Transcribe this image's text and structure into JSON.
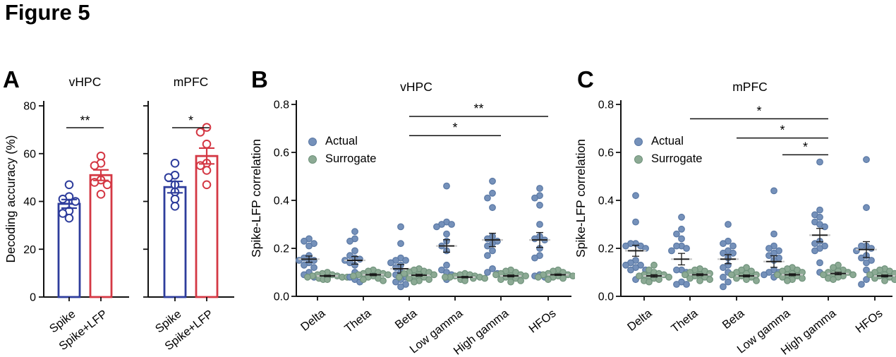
{
  "figure_title": "Figure 5",
  "colors": {
    "bar_blue": "#2e3d9c",
    "bar_red": "#d43844",
    "dot_blue_fill": "#7591ba",
    "dot_blue_stroke": "#5a78a4",
    "dot_green_fill": "#8caa94",
    "dot_green_stroke": "#6f927b",
    "axis": "#111111",
    "mean_line": "#1a1a1a",
    "mean_line_gray": "#c8c8c8"
  },
  "chart_data": [
    {
      "panel_label": "A",
      "type": "bar",
      "ylabel": "Decoding accuracy (%)",
      "ylim": [
        0,
        80
      ],
      "yticks": [
        0,
        20,
        40,
        60,
        80
      ],
      "subpanels": [
        {
          "title": "vHPC",
          "significance": "**",
          "bars": [
            {
              "label": "Spike",
              "color_key": "bar_blue",
              "mean": 39,
              "sem": 1.8,
              "points": [
                47,
                42,
                41,
                40,
                36,
                35,
                33
              ]
            },
            {
              "label": "Spike+LFP",
              "color_key": "bar_red",
              "mean": 51,
              "sem": 2.2,
              "points": [
                59,
                56,
                55,
                49,
                48,
                47,
                43
              ]
            }
          ]
        },
        {
          "title": "mPFC",
          "significance": "*",
          "bars": [
            {
              "label": "Spike",
              "color_key": "bar_blue",
              "mean": 46,
              "sem": 2.4,
              "points": [
                56,
                51,
                50,
                47,
                44,
                41,
                38
              ]
            },
            {
              "label": "Spike+LFP",
              "color_key": "bar_red",
              "mean": 59,
              "sem": 3.3,
              "points": [
                71,
                69,
                64,
                56,
                55,
                53,
                47
              ]
            }
          ]
        }
      ]
    },
    {
      "panel_label": "B",
      "type": "scatter-swarm",
      "title": "vHPC",
      "ylabel": "Spike-LFP correlation",
      "ylim": [
        0,
        0.8
      ],
      "yticks": [
        0,
        0.2,
        0.4,
        0.6,
        0.8
      ],
      "legend": [
        {
          "label": "Actual",
          "color_key": "dot_blue"
        },
        {
          "label": "Surrogate",
          "color_key": "dot_green"
        }
      ],
      "categories": [
        "Delta",
        "Theta",
        "Beta",
        "Low gamma",
        "High gamma",
        "HFOs"
      ],
      "significance": [
        {
          "from": "Beta",
          "to": "HFOs",
          "label": "**",
          "height": 0.75
        },
        {
          "from": "Beta",
          "to": "High gamma",
          "label": "*",
          "height": 0.67
        }
      ],
      "groups": [
        {
          "category": "Delta",
          "actual": {
            "mean": 0.155,
            "sem": 0.013,
            "points": [
              0.24,
              0.23,
              0.22,
              0.21,
              0.17,
              0.16,
              0.15,
              0.15,
              0.14,
              0.13,
              0.12,
              0.1,
              0.09,
              0.08
            ]
          },
          "surrogate": {
            "mean": 0.085,
            "sem": 0.003,
            "points": [
              0.1,
              0.095,
              0.09,
              0.09,
              0.085,
              0.085,
              0.08,
              0.08,
              0.08,
              0.075,
              0.075,
              0.07,
              0.07
            ]
          }
        },
        {
          "category": "Theta",
          "actual": {
            "mean": 0.15,
            "sem": 0.016,
            "points": [
              0.27,
              0.24,
              0.23,
              0.19,
              0.17,
              0.16,
              0.155,
              0.15,
              0.14,
              0.13,
              0.1,
              0.08,
              0.07,
              0.06
            ]
          },
          "surrogate": {
            "mean": 0.09,
            "sem": 0.004,
            "points": [
              0.11,
              0.105,
              0.1,
              0.095,
              0.095,
              0.09,
              0.09,
              0.085,
              0.085,
              0.08,
              0.075,
              0.07,
              0.065
            ]
          }
        },
        {
          "category": "Beta",
          "actual": {
            "mean": 0.115,
            "sem": 0.018,
            "points": [
              0.29,
              0.22,
              0.16,
              0.15,
              0.15,
              0.14,
              0.13,
              0.12,
              0.1,
              0.09,
              0.08,
              0.07,
              0.06,
              0.05,
              0.04
            ]
          },
          "surrogate": {
            "mean": 0.088,
            "sem": 0.004,
            "points": [
              0.115,
              0.11,
              0.105,
              0.1,
              0.1,
              0.095,
              0.09,
              0.09,
              0.085,
              0.08,
              0.08,
              0.075,
              0.07,
              0.065,
              0.06
            ]
          }
        },
        {
          "category": "Low gamma",
          "actual": {
            "mean": 0.21,
            "sem": 0.026,
            "points": [
              0.46,
              0.31,
              0.3,
              0.3,
              0.29,
              0.26,
              0.23,
              0.21,
              0.19,
              0.13,
              0.11,
              0.1,
              0.09,
              0.07
            ]
          },
          "surrogate": {
            "mean": 0.08,
            "sem": 0.003,
            "points": [
              0.095,
              0.09,
              0.09,
              0.085,
              0.085,
              0.08,
              0.08,
              0.08,
              0.075,
              0.075,
              0.07,
              0.07,
              0.065
            ]
          }
        },
        {
          "category": "High gamma",
          "actual": {
            "mean": 0.235,
            "sem": 0.028,
            "points": [
              0.48,
              0.43,
              0.41,
              0.37,
              0.25,
              0.24,
              0.23,
              0.22,
              0.21,
              0.19,
              0.17,
              0.115,
              0.1,
              0.095
            ]
          },
          "surrogate": {
            "mean": 0.085,
            "sem": 0.004,
            "points": [
              0.11,
              0.105,
              0.1,
              0.095,
              0.09,
              0.09,
              0.085,
              0.085,
              0.08,
              0.075,
              0.07,
              0.065,
              0.06
            ]
          }
        },
        {
          "category": "HFOs",
          "actual": {
            "mean": 0.235,
            "sem": 0.031,
            "points": [
              0.45,
              0.42,
              0.41,
              0.38,
              0.3,
              0.25,
              0.24,
              0.235,
              0.2,
              0.17,
              0.16,
              0.09,
              0.085,
              0.08
            ]
          },
          "surrogate": {
            "mean": 0.09,
            "sem": 0.003,
            "points": [
              0.11,
              0.105,
              0.1,
              0.095,
              0.09,
              0.09,
              0.085,
              0.085,
              0.08,
              0.08,
              0.075,
              0.07
            ]
          }
        }
      ]
    },
    {
      "panel_label": "C",
      "type": "scatter-swarm",
      "title": "mPFC",
      "ylabel": "Spike-LFP correlation",
      "ylim": [
        0,
        0.8
      ],
      "yticks": [
        0,
        0.2,
        0.4,
        0.6,
        0.8
      ],
      "legend": [
        {
          "label": "Actual",
          "color_key": "dot_blue"
        },
        {
          "label": "Surrogate",
          "color_key": "dot_green"
        }
      ],
      "categories": [
        "Delta",
        "Theta",
        "Beta",
        "Low gamma",
        "High gamma",
        "HFOs"
      ],
      "significance": [
        {
          "from": "Theta",
          "to": "High gamma",
          "label": "*",
          "height": 0.74
        },
        {
          "from": "Beta",
          "to": "High gamma",
          "label": "*",
          "height": 0.66
        },
        {
          "from": "Low gamma",
          "to": "High gamma",
          "label": "*",
          "height": 0.59
        }
      ],
      "groups": [
        {
          "category": "Delta",
          "actual": {
            "mean": 0.19,
            "sem": 0.023,
            "points": [
              0.42,
              0.31,
              0.22,
              0.22,
              0.21,
              0.21,
              0.2,
              0.15,
              0.14,
              0.13,
              0.13,
              0.12,
              0.11,
              0.11,
              0.07
            ]
          },
          "surrogate": {
            "mean": 0.085,
            "sem": 0.005,
            "points": [
              0.13,
              0.11,
              0.1,
              0.095,
              0.09,
              0.09,
              0.085,
              0.085,
              0.08,
              0.075,
              0.07,
              0.065,
              0.06
            ]
          }
        },
        {
          "category": "Theta",
          "actual": {
            "mean": 0.155,
            "sem": 0.024,
            "points": [
              0.33,
              0.28,
              0.26,
              0.24,
              0.21,
              0.21,
              0.2,
              0.19,
              0.11,
              0.11,
              0.1,
              0.06,
              0.05,
              0.05
            ]
          },
          "surrogate": {
            "mean": 0.09,
            "sem": 0.004,
            "points": [
              0.115,
              0.11,
              0.105,
              0.1,
              0.095,
              0.09,
              0.09,
              0.085,
              0.08,
              0.075,
              0.07,
              0.065
            ]
          }
        },
        {
          "category": "Beta",
          "actual": {
            "mean": 0.155,
            "sem": 0.019,
            "points": [
              0.3,
              0.23,
              0.22,
              0.21,
              0.19,
              0.18,
              0.18,
              0.16,
              0.13,
              0.12,
              0.1,
              0.08,
              0.06,
              0.04
            ]
          },
          "surrogate": {
            "mean": 0.085,
            "sem": 0.004,
            "points": [
              0.12,
              0.11,
              0.105,
              0.1,
              0.095,
              0.09,
              0.09,
              0.085,
              0.08,
              0.075,
              0.07,
              0.065
            ]
          }
        },
        {
          "category": "Low gamma",
          "actual": {
            "mean": 0.145,
            "sem": 0.024,
            "points": [
              0.44,
              0.26,
              0.21,
              0.2,
              0.19,
              0.18,
              0.17,
              0.16,
              0.15,
              0.11,
              0.1,
              0.1,
              0.09,
              0.08
            ]
          },
          "surrogate": {
            "mean": 0.09,
            "sem": 0.004,
            "points": [
              0.12,
              0.115,
              0.11,
              0.105,
              0.1,
              0.095,
              0.09,
              0.09,
              0.085,
              0.08,
              0.075,
              0.07,
              0.065
            ]
          }
        },
        {
          "category": "High gamma",
          "actual": {
            "mean": 0.255,
            "sem": 0.028,
            "points": [
              0.56,
              0.36,
              0.34,
              0.33,
              0.31,
              0.3,
              0.29,
              0.23,
              0.22,
              0.21,
              0.2,
              0.19,
              0.14,
              0.1
            ]
          },
          "surrogate": {
            "mean": 0.095,
            "sem": 0.005,
            "points": [
              0.13,
              0.12,
              0.11,
              0.105,
              0.1,
              0.1,
              0.095,
              0.09,
              0.09,
              0.085,
              0.08,
              0.075,
              0.07
            ]
          }
        },
        {
          "category": "HFOs",
          "actual": {
            "mean": 0.195,
            "sem": 0.033,
            "points": [
              0.57,
              0.37,
              0.21,
              0.21,
              0.2,
              0.19,
              0.17,
              0.16,
              0.15,
              0.14,
              0.11,
              0.07,
              0.05
            ]
          },
          "surrogate": {
            "mean": 0.085,
            "sem": 0.004,
            "points": [
              0.115,
              0.11,
              0.105,
              0.1,
              0.095,
              0.09,
              0.09,
              0.085,
              0.08,
              0.075,
              0.07,
              0.065
            ]
          }
        }
      ]
    }
  ]
}
